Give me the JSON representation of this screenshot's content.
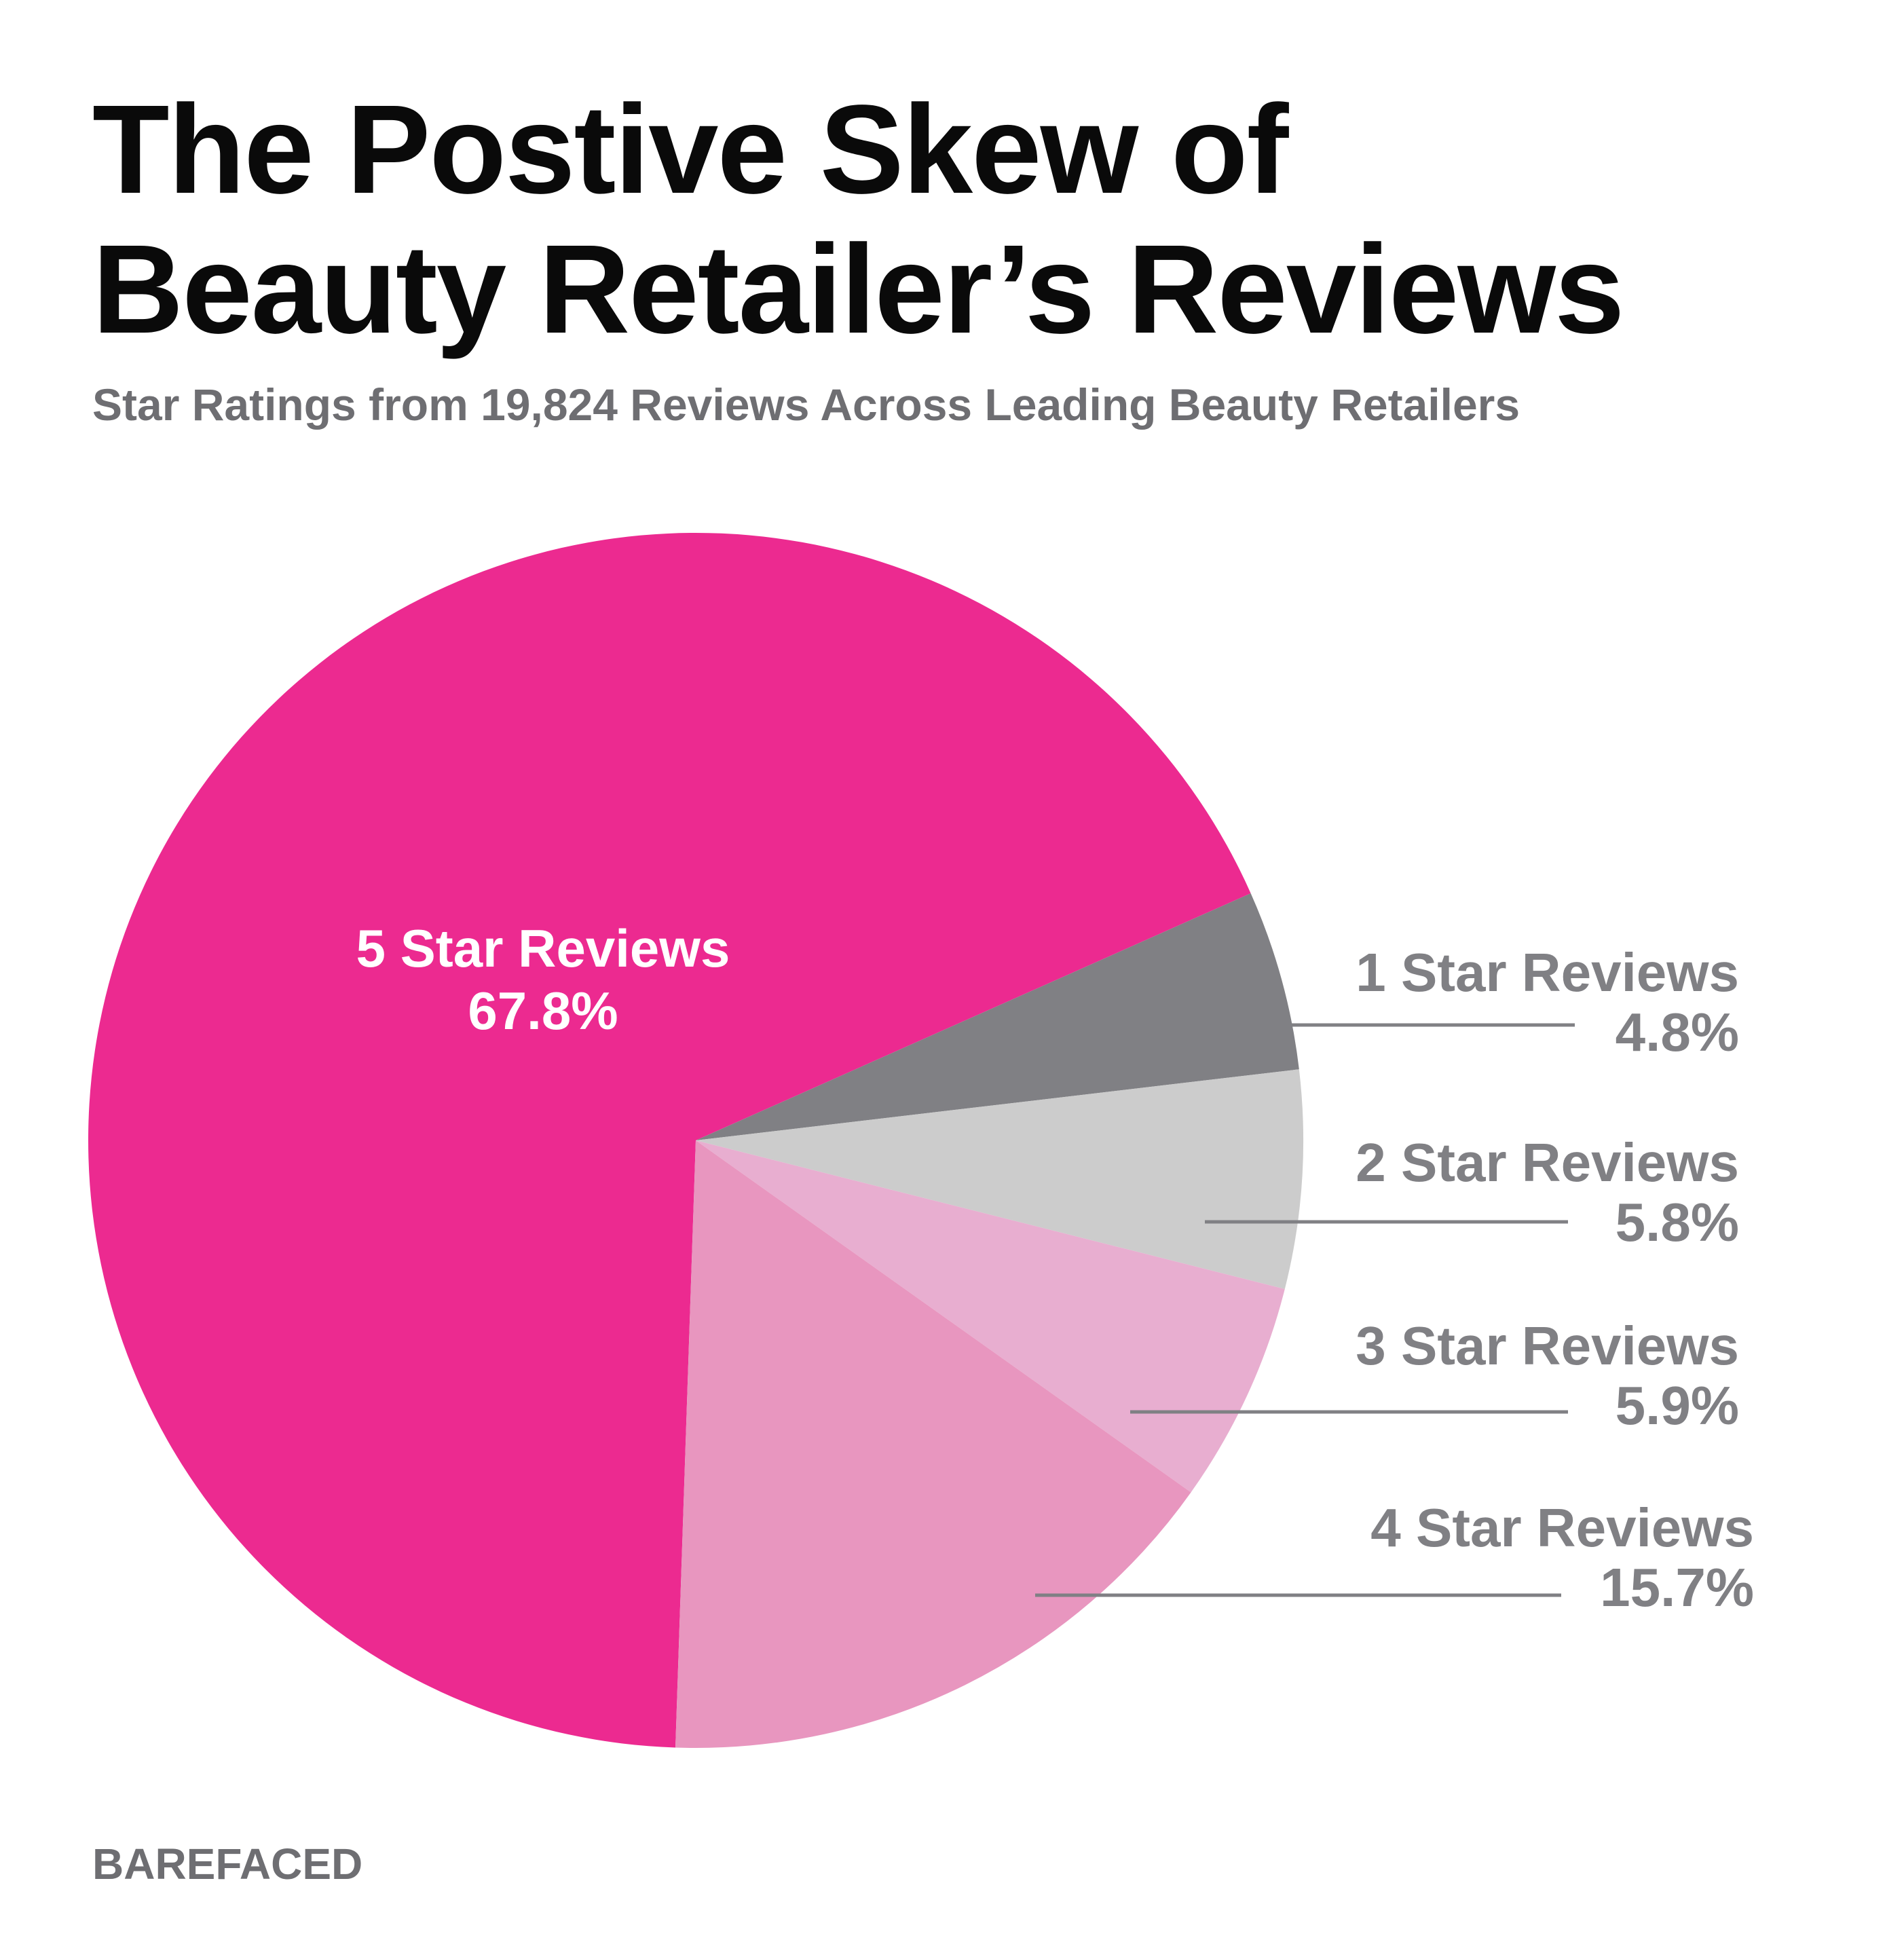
{
  "title_line1": "The Postive Skew of",
  "title_line2": "Beauty Retailer’s Reviews",
  "subtitle": "Star Ratings from 19,824 Reviews Across Leading Beauty Retailers",
  "brand": "BAREFACED",
  "chart_data": {
    "type": "pie",
    "title": "The Postive Skew of Beauty Retailer’s Reviews",
    "subtitle": "Star Ratings from 19,824 Reviews Across Leading Beauty Retailers",
    "slices": [
      {
        "label": "5 Star Reviews",
        "value": 67.8,
        "value_label": "67.8%",
        "color": "#ec2a90",
        "text_color": "#ffffff"
      },
      {
        "label": "1 Star Reviews",
        "value": 4.8,
        "value_label": "4.8%",
        "color": "#808084",
        "text_color": "#808084"
      },
      {
        "label": "2 Star Reviews",
        "value": 5.8,
        "value_label": "5.8%",
        "color": "#cccccc",
        "text_color": "#808084"
      },
      {
        "label": "3 Star Reviews",
        "value": 5.9,
        "value_label": "5.9%",
        "color": "#e8aed0",
        "text_color": "#808084"
      },
      {
        "label": "4 Star Reviews",
        "value": 15.7,
        "value_label": "15.7%",
        "color": "#e896bf",
        "text_color": "#808084"
      }
    ],
    "legend": "callout labels to the right of the pie"
  }
}
